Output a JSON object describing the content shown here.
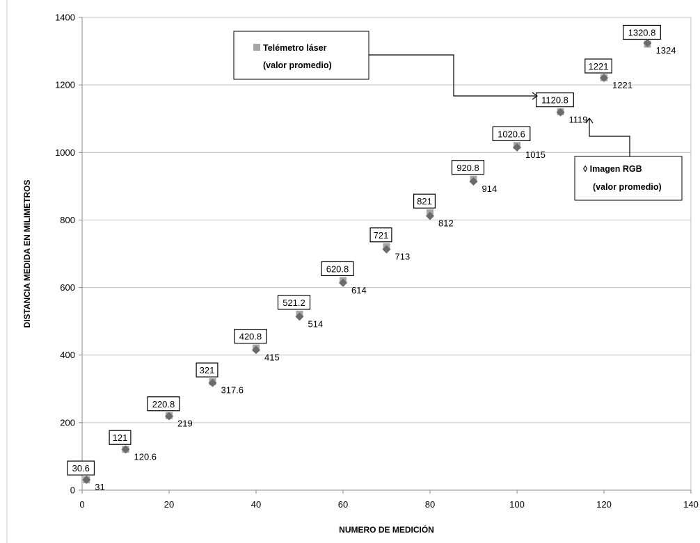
{
  "chart_data": {
    "type": "scatter",
    "title": "",
    "xlabel": "NUMERO DE MEDICIÓN",
    "ylabel": "DISTANCIA MEDIDA EN MILIMETROS",
    "xlim": [
      0,
      140
    ],
    "ylim": [
      0,
      1400
    ],
    "x_ticks": [
      0,
      20,
      40,
      60,
      80,
      100,
      120,
      140
    ],
    "y_ticks": [
      0,
      200,
      400,
      600,
      800,
      1000,
      1200,
      1400
    ],
    "grid": {
      "horizontal": true,
      "vertical": false
    },
    "x": [
      1,
      10,
      20,
      30,
      40,
      50,
      60,
      70,
      80,
      90,
      100,
      110,
      120,
      130
    ],
    "series": [
      {
        "name": "Telémetro láser (valor promedio)",
        "marker": "square",
        "color": "#a6a6a6",
        "values": [
          30.6,
          121,
          220.8,
          321,
          420.8,
          521.2,
          620.8,
          721,
          821,
          920.8,
          1020.6,
          1120.8,
          1221,
          1320.8
        ],
        "labels": [
          "30.6",
          "121",
          "220.8",
          "321",
          "420.8",
          "521.2",
          "620.8",
          "721",
          "821",
          "920.8",
          "1020.6",
          "1120.8",
          "1221",
          "1320.8"
        ]
      },
      {
        "name": "Imagen RGB (valor promedio)",
        "marker": "diamond",
        "color": "#6b6b6b",
        "values": [
          31,
          120.6,
          219,
          317.6,
          415,
          514,
          614,
          713,
          812,
          914,
          1015,
          1119,
          1221,
          1324
        ],
        "labels": [
          "31",
          "120.6",
          "219",
          "317.6",
          "415",
          "514",
          "614",
          "713",
          "812",
          "914",
          "1015",
          "1119",
          "1221",
          "1324"
        ]
      }
    ],
    "annotations": [
      {
        "line1": "Telémetro láser",
        "line2": "(valor promedio)",
        "symbol": "square"
      },
      {
        "line1": "◊ Imagen RGB",
        "line2": "(valor promedio)",
        "symbol": "none"
      }
    ]
  }
}
